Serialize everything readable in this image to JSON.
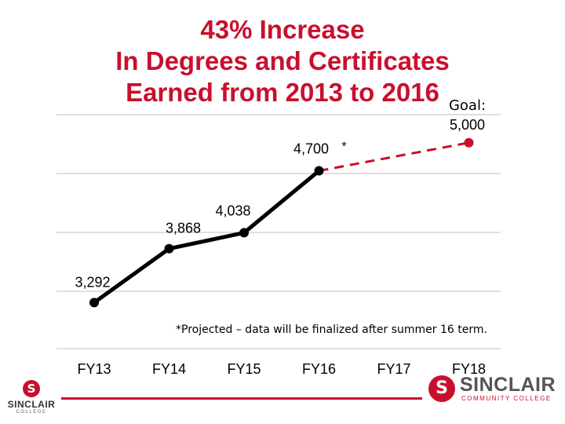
{
  "title_lines": [
    "43% Increase",
    "In Degrees and Certificates",
    "Earned from 2013 to 2016"
  ],
  "footnote": "*Projected – data will be finalized after summer 16 term.",
  "colors": {
    "title": "#c8102e",
    "line": "#000000",
    "projection": "#c8102e",
    "grid": "#bfbfbf",
    "brand": "#c8102e"
  },
  "logos": {
    "left": {
      "name": "SINCLAIR",
      "sub": "COLLEGE"
    },
    "right": {
      "name": "SINCLAIR",
      "sub": "COMMUNITY COLLEGE"
    }
  },
  "chart_data": {
    "type": "line",
    "categories": [
      "FY13",
      "FY14",
      "FY15",
      "FY16",
      "FY17",
      "FY18"
    ],
    "series": [
      {
        "values": [
          3292,
          3868,
          4038,
          4700,
          null,
          null
        ],
        "data_labels": [
          "3,292",
          "3,868",
          "4,038",
          "4,700"
        ],
        "style": "solid"
      },
      {
        "values": [
          null,
          null,
          null,
          4700,
          null,
          5000
        ],
        "data_labels": [
          "",
          "",
          "",
          "",
          "",
          "5,000"
        ],
        "style": "dashed"
      }
    ],
    "annotations": [
      {
        "text": "*",
        "category": "FY16"
      },
      {
        "text": "Goal:",
        "category": "FY18"
      }
    ],
    "ylim": [
      2800,
      5300
    ],
    "grid": true,
    "legend": "none"
  }
}
